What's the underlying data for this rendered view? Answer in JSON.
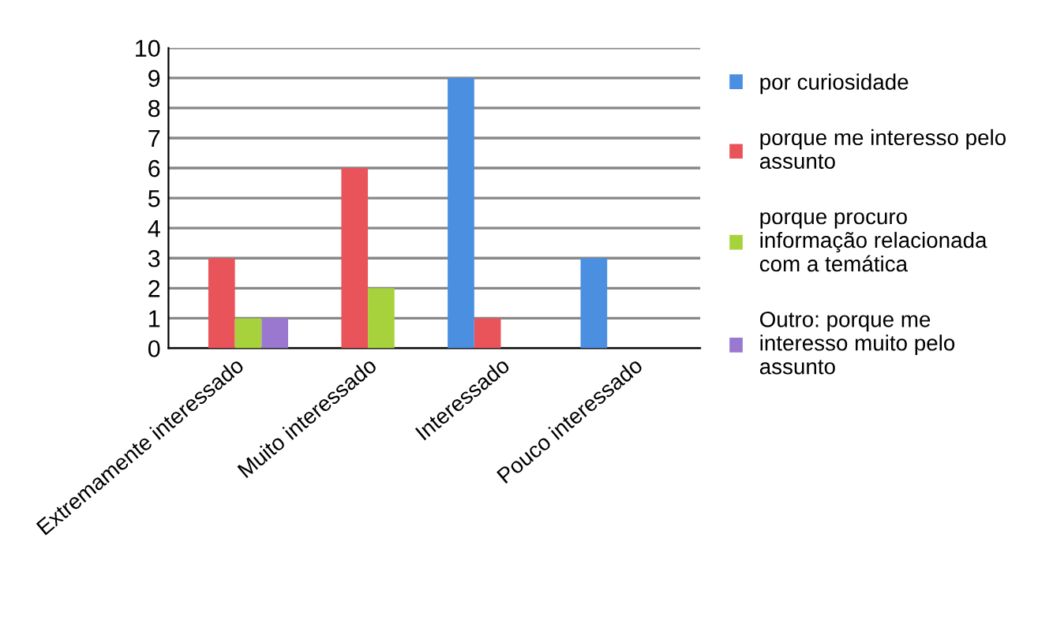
{
  "chart_data": {
    "type": "bar",
    "categories": [
      "Extremamente interessado",
      "Muito interessado",
      "Interessado",
      "Pouco interessado"
    ],
    "series": [
      {
        "name": "por curiosidade",
        "color": "#4a8fe0",
        "values": [
          0,
          0,
          9,
          3
        ]
      },
      {
        "name": "porque me interesso pelo assunto",
        "color": "#e8545a",
        "values": [
          3,
          6,
          1,
          0
        ]
      },
      {
        "name": "porque procuro informação relacionada com a temática",
        "color": "#a8d23c",
        "values": [
          1,
          2,
          0,
          0
        ]
      },
      {
        "name": "Outro: porque me interesso muito pelo assunto",
        "color": "#9a78d0",
        "values": [
          1,
          0,
          0,
          0
        ]
      }
    ],
    "ylim": [
      0,
      10
    ],
    "yticks": [
      0,
      1,
      2,
      3,
      4,
      5,
      6,
      7,
      8,
      9,
      10
    ],
    "grid": "y",
    "legend": "right"
  }
}
